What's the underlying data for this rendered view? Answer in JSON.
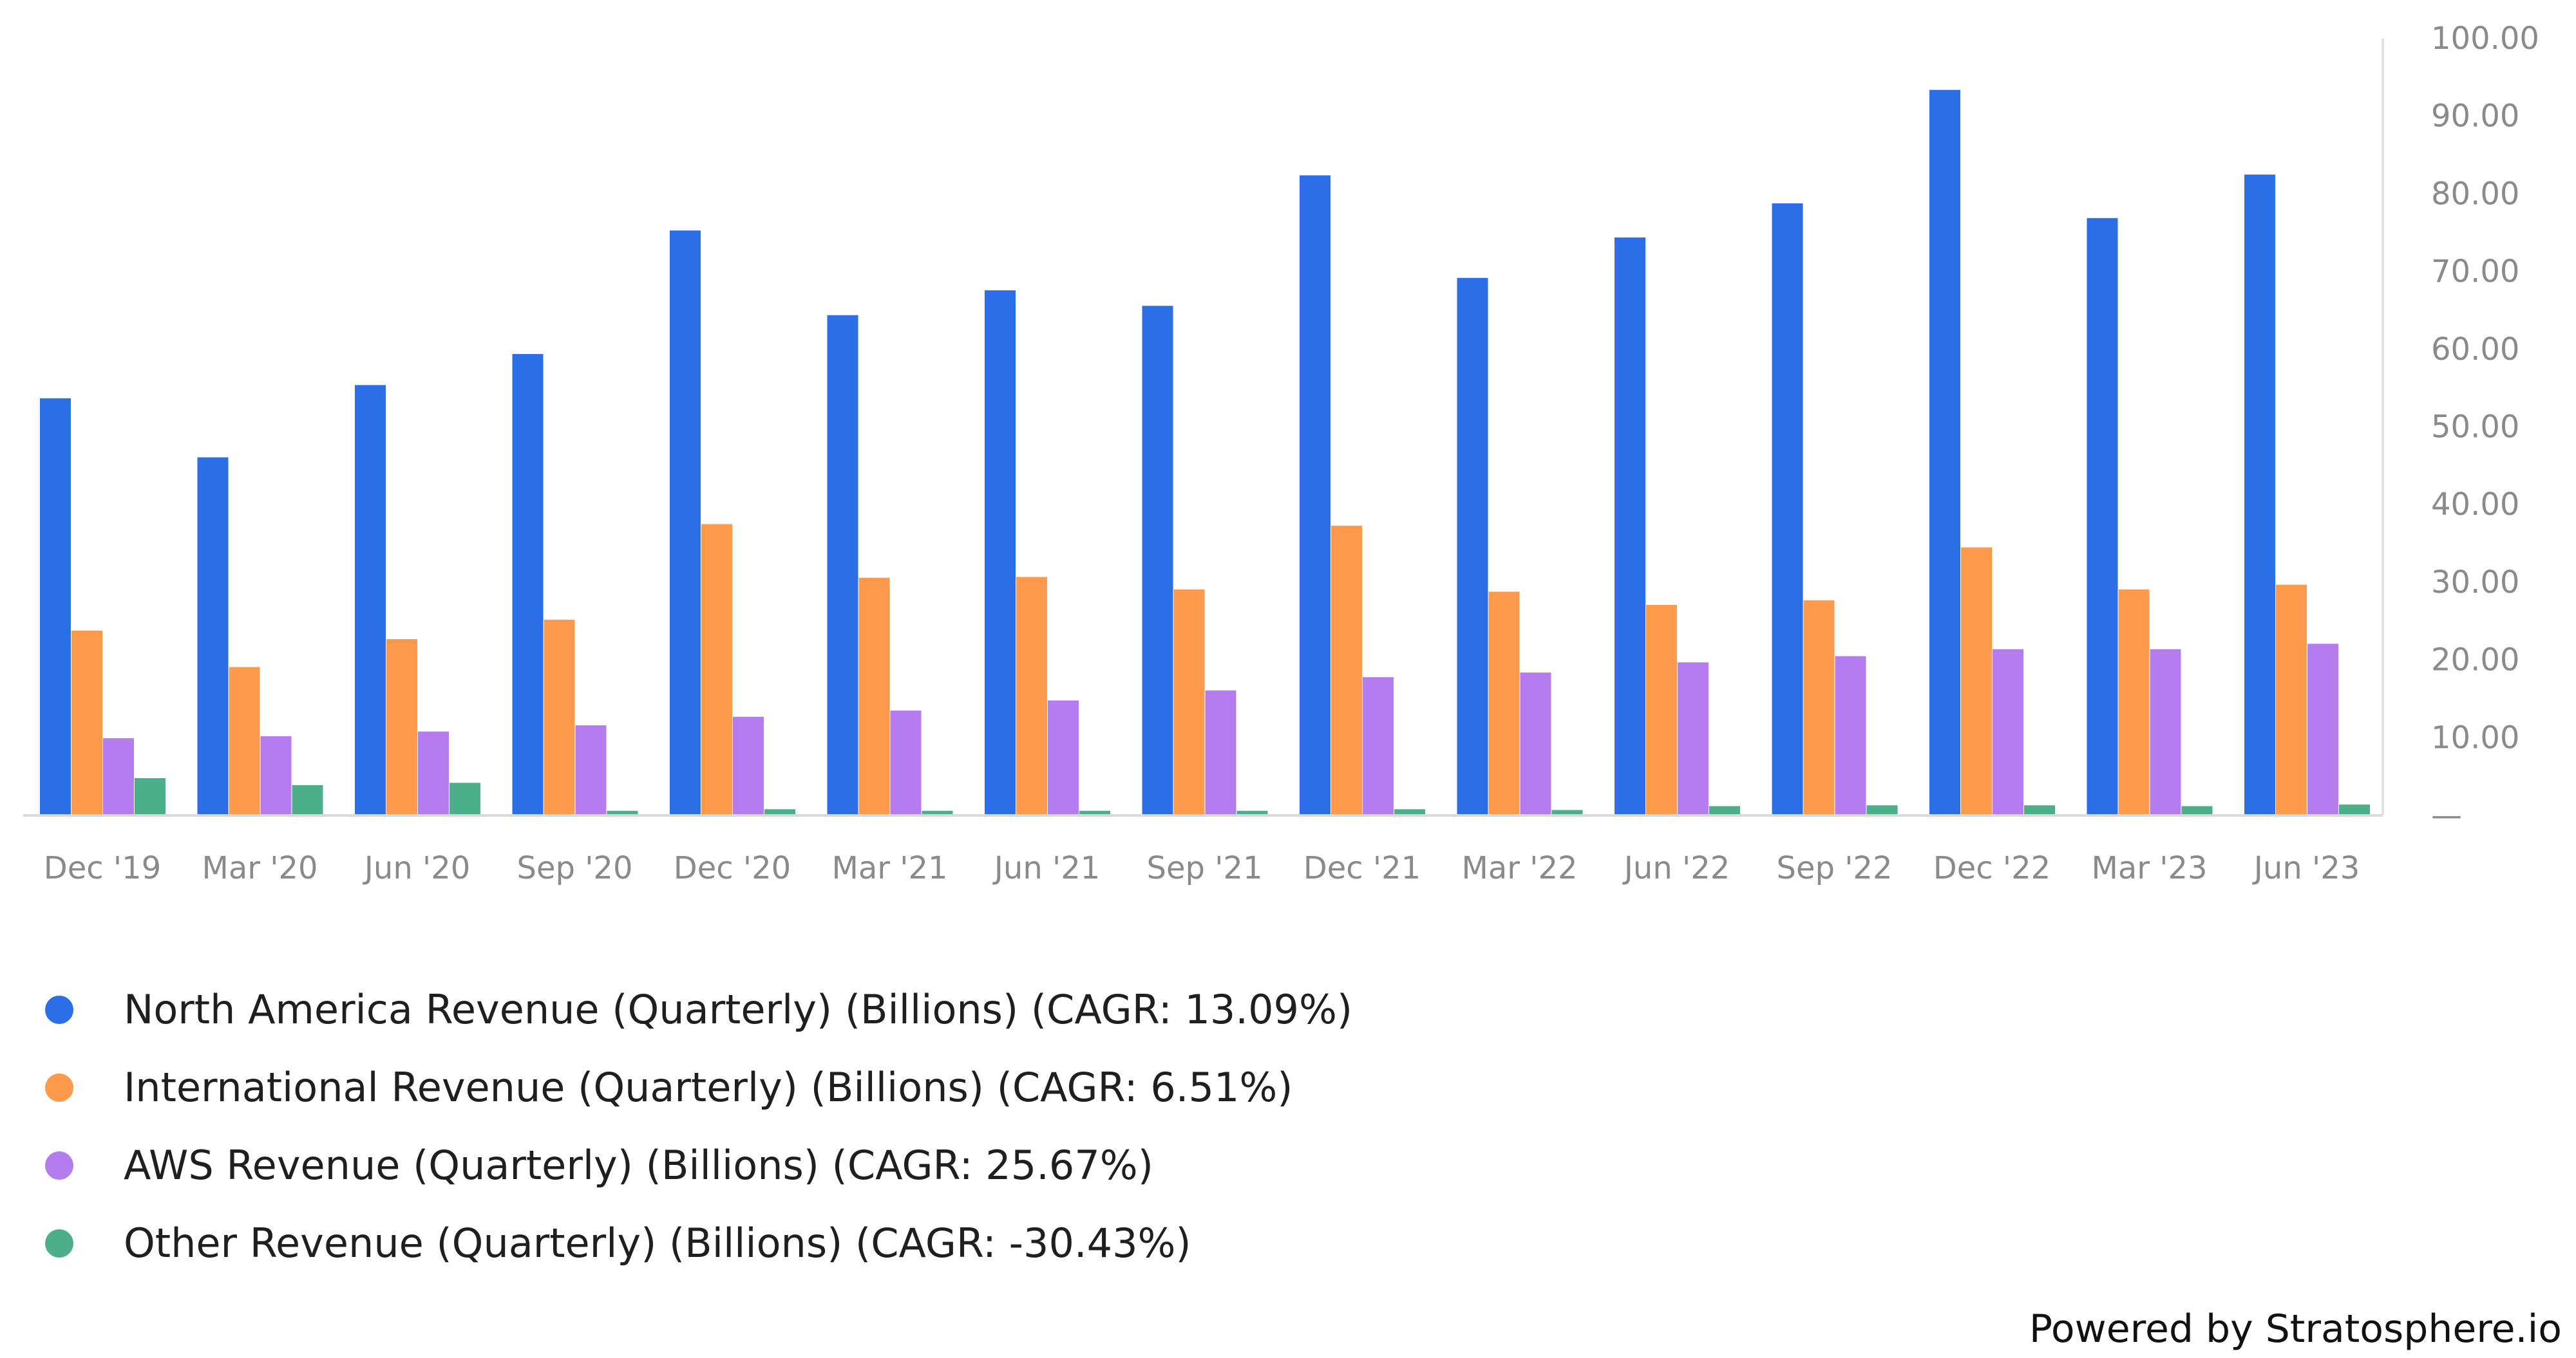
{
  "chart_data": {
    "type": "bar",
    "categories": [
      "Dec '19",
      "Mar '20",
      "Jun '20",
      "Sep '20",
      "Dec '20",
      "Mar '21",
      "Jun '21",
      "Sep '21",
      "Dec '21",
      "Mar '22",
      "Jun '22",
      "Sep '22",
      "Dec '22",
      "Mar '23",
      "Jun '23"
    ],
    "series": [
      {
        "name": "North America Revenue (Quarterly) (Billions) (CAGR: 13.09%)",
        "color": "#2a6fe8",
        "values": [
          53.7,
          46.1,
          55.4,
          59.4,
          75.3,
          64.4,
          67.6,
          65.6,
          82.4,
          69.2,
          74.4,
          78.8,
          93.4,
          76.9,
          82.5
        ]
      },
      {
        "name": "International Revenue (Quarterly) (Billions) (CAGR: 6.51%)",
        "color": "#ff9a4d",
        "values": [
          23.8,
          19.1,
          22.7,
          25.2,
          37.5,
          30.6,
          30.7,
          29.1,
          37.3,
          28.8,
          27.1,
          27.7,
          34.5,
          29.1,
          29.7
        ]
      },
      {
        "name": "AWS Revenue (Quarterly) (Billions) (CAGR: 25.67%)",
        "color": "#b57cf0",
        "values": [
          9.95,
          10.2,
          10.8,
          11.6,
          12.7,
          13.5,
          14.8,
          16.1,
          17.8,
          18.4,
          19.7,
          20.5,
          21.4,
          21.4,
          22.1
        ]
      },
      {
        "name": "Other Revenue (Quarterly) (Billions) (CAGR: -30.43%)",
        "color": "#4caf8a",
        "values": [
          4.8,
          3.9,
          4.2,
          0.6,
          0.8,
          0.6,
          0.6,
          0.6,
          0.8,
          0.7,
          1.2,
          1.3,
          1.3,
          1.2,
          1.4
        ]
      }
    ],
    "yticks": [
      "100.00",
      "90.00",
      "80.00",
      "70.00",
      "60.00",
      "50.00",
      "40.00",
      "30.00",
      "20.00",
      "10.00",
      "—"
    ],
    "ylim": [
      0,
      100
    ],
    "y_axis_side": "right",
    "grid": false,
    "legend_position": "bottom-left"
  },
  "footer": {
    "text": "Powered by Stratosphere.io"
  }
}
